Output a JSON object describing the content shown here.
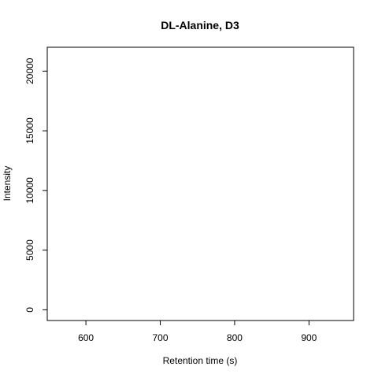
{
  "chart_data": {
    "type": "line",
    "title": "DL-Alanine, D3",
    "xlabel": "Retention time (s)",
    "ylabel": "Intensity",
    "xlim": [
      548,
      960
    ],
    "ylim": [
      -900,
      22000
    ],
    "x_ticks": [
      600,
      700,
      800,
      900
    ],
    "x_tick_labels": [
      "600",
      "700",
      "800",
      "900"
    ],
    "y_ticks": [
      0,
      5000,
      10000,
      15000,
      20000
    ],
    "y_tick_labels": [
      "0",
      "5000",
      "10000",
      "15000",
      "20000"
    ],
    "grid": false,
    "series": []
  }
}
